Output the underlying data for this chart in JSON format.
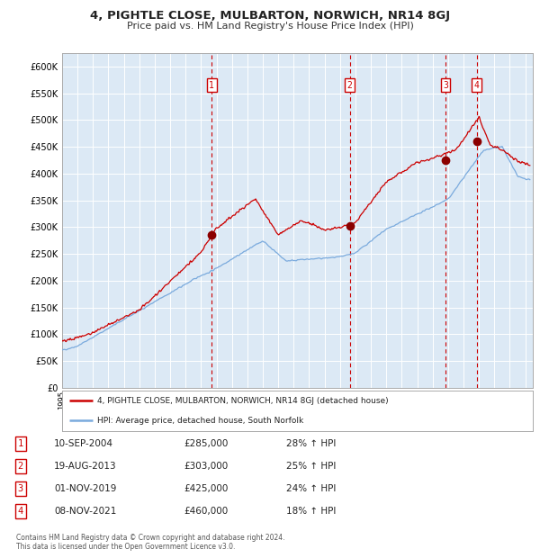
{
  "title": "4, PIGHTLE CLOSE, MULBARTON, NORWICH, NR14 8GJ",
  "subtitle": "Price paid vs. HM Land Registry's House Price Index (HPI)",
  "title_fontsize": 9.5,
  "subtitle_fontsize": 8,
  "background_color": "#dce9f5",
  "grid_color": "#ffffff",
  "red_line_color": "#cc0000",
  "blue_line_color": "#7aaadd",
  "sale_dot_color": "#8b0000",
  "dashed_line_color": "#cc0000",
  "yticks": [
    0,
    50000,
    100000,
    150000,
    200000,
    250000,
    300000,
    350000,
    400000,
    450000,
    500000,
    550000,
    600000
  ],
  "xlim_start": 1995.0,
  "xlim_end": 2025.5,
  "ylim_min": 0,
  "ylim_max": 625000,
  "sale_events": [
    {
      "label": "1",
      "date_dec": 2004.69,
      "price": 285000
    },
    {
      "label": "2",
      "date_dec": 2013.63,
      "price": 303000
    },
    {
      "label": "3",
      "date_dec": 2019.83,
      "price": 425000
    },
    {
      "label": "4",
      "date_dec": 2021.85,
      "price": 460000
    }
  ],
  "legend_line1": "4, PIGHTLE CLOSE, MULBARTON, NORWICH, NR14 8GJ (detached house)",
  "legend_line2": "HPI: Average price, detached house, South Norfolk",
  "legend_color1": "#cc0000",
  "legend_color2": "#7aaadd",
  "table_rows": [
    {
      "num": "1",
      "date": "10-SEP-2004",
      "price": "£285,000",
      "pct": "28% ↑ HPI"
    },
    {
      "num": "2",
      "date": "19-AUG-2013",
      "price": "£303,000",
      "pct": "25% ↑ HPI"
    },
    {
      "num": "3",
      "date": "01-NOV-2019",
      "price": "£425,000",
      "pct": "24% ↑ HPI"
    },
    {
      "num": "4",
      "date": "08-NOV-2021",
      "price": "£460,000",
      "pct": "18% ↑ HPI"
    }
  ],
  "footnote": "Contains HM Land Registry data © Crown copyright and database right 2024.\nThis data is licensed under the Open Government Licence v3.0."
}
